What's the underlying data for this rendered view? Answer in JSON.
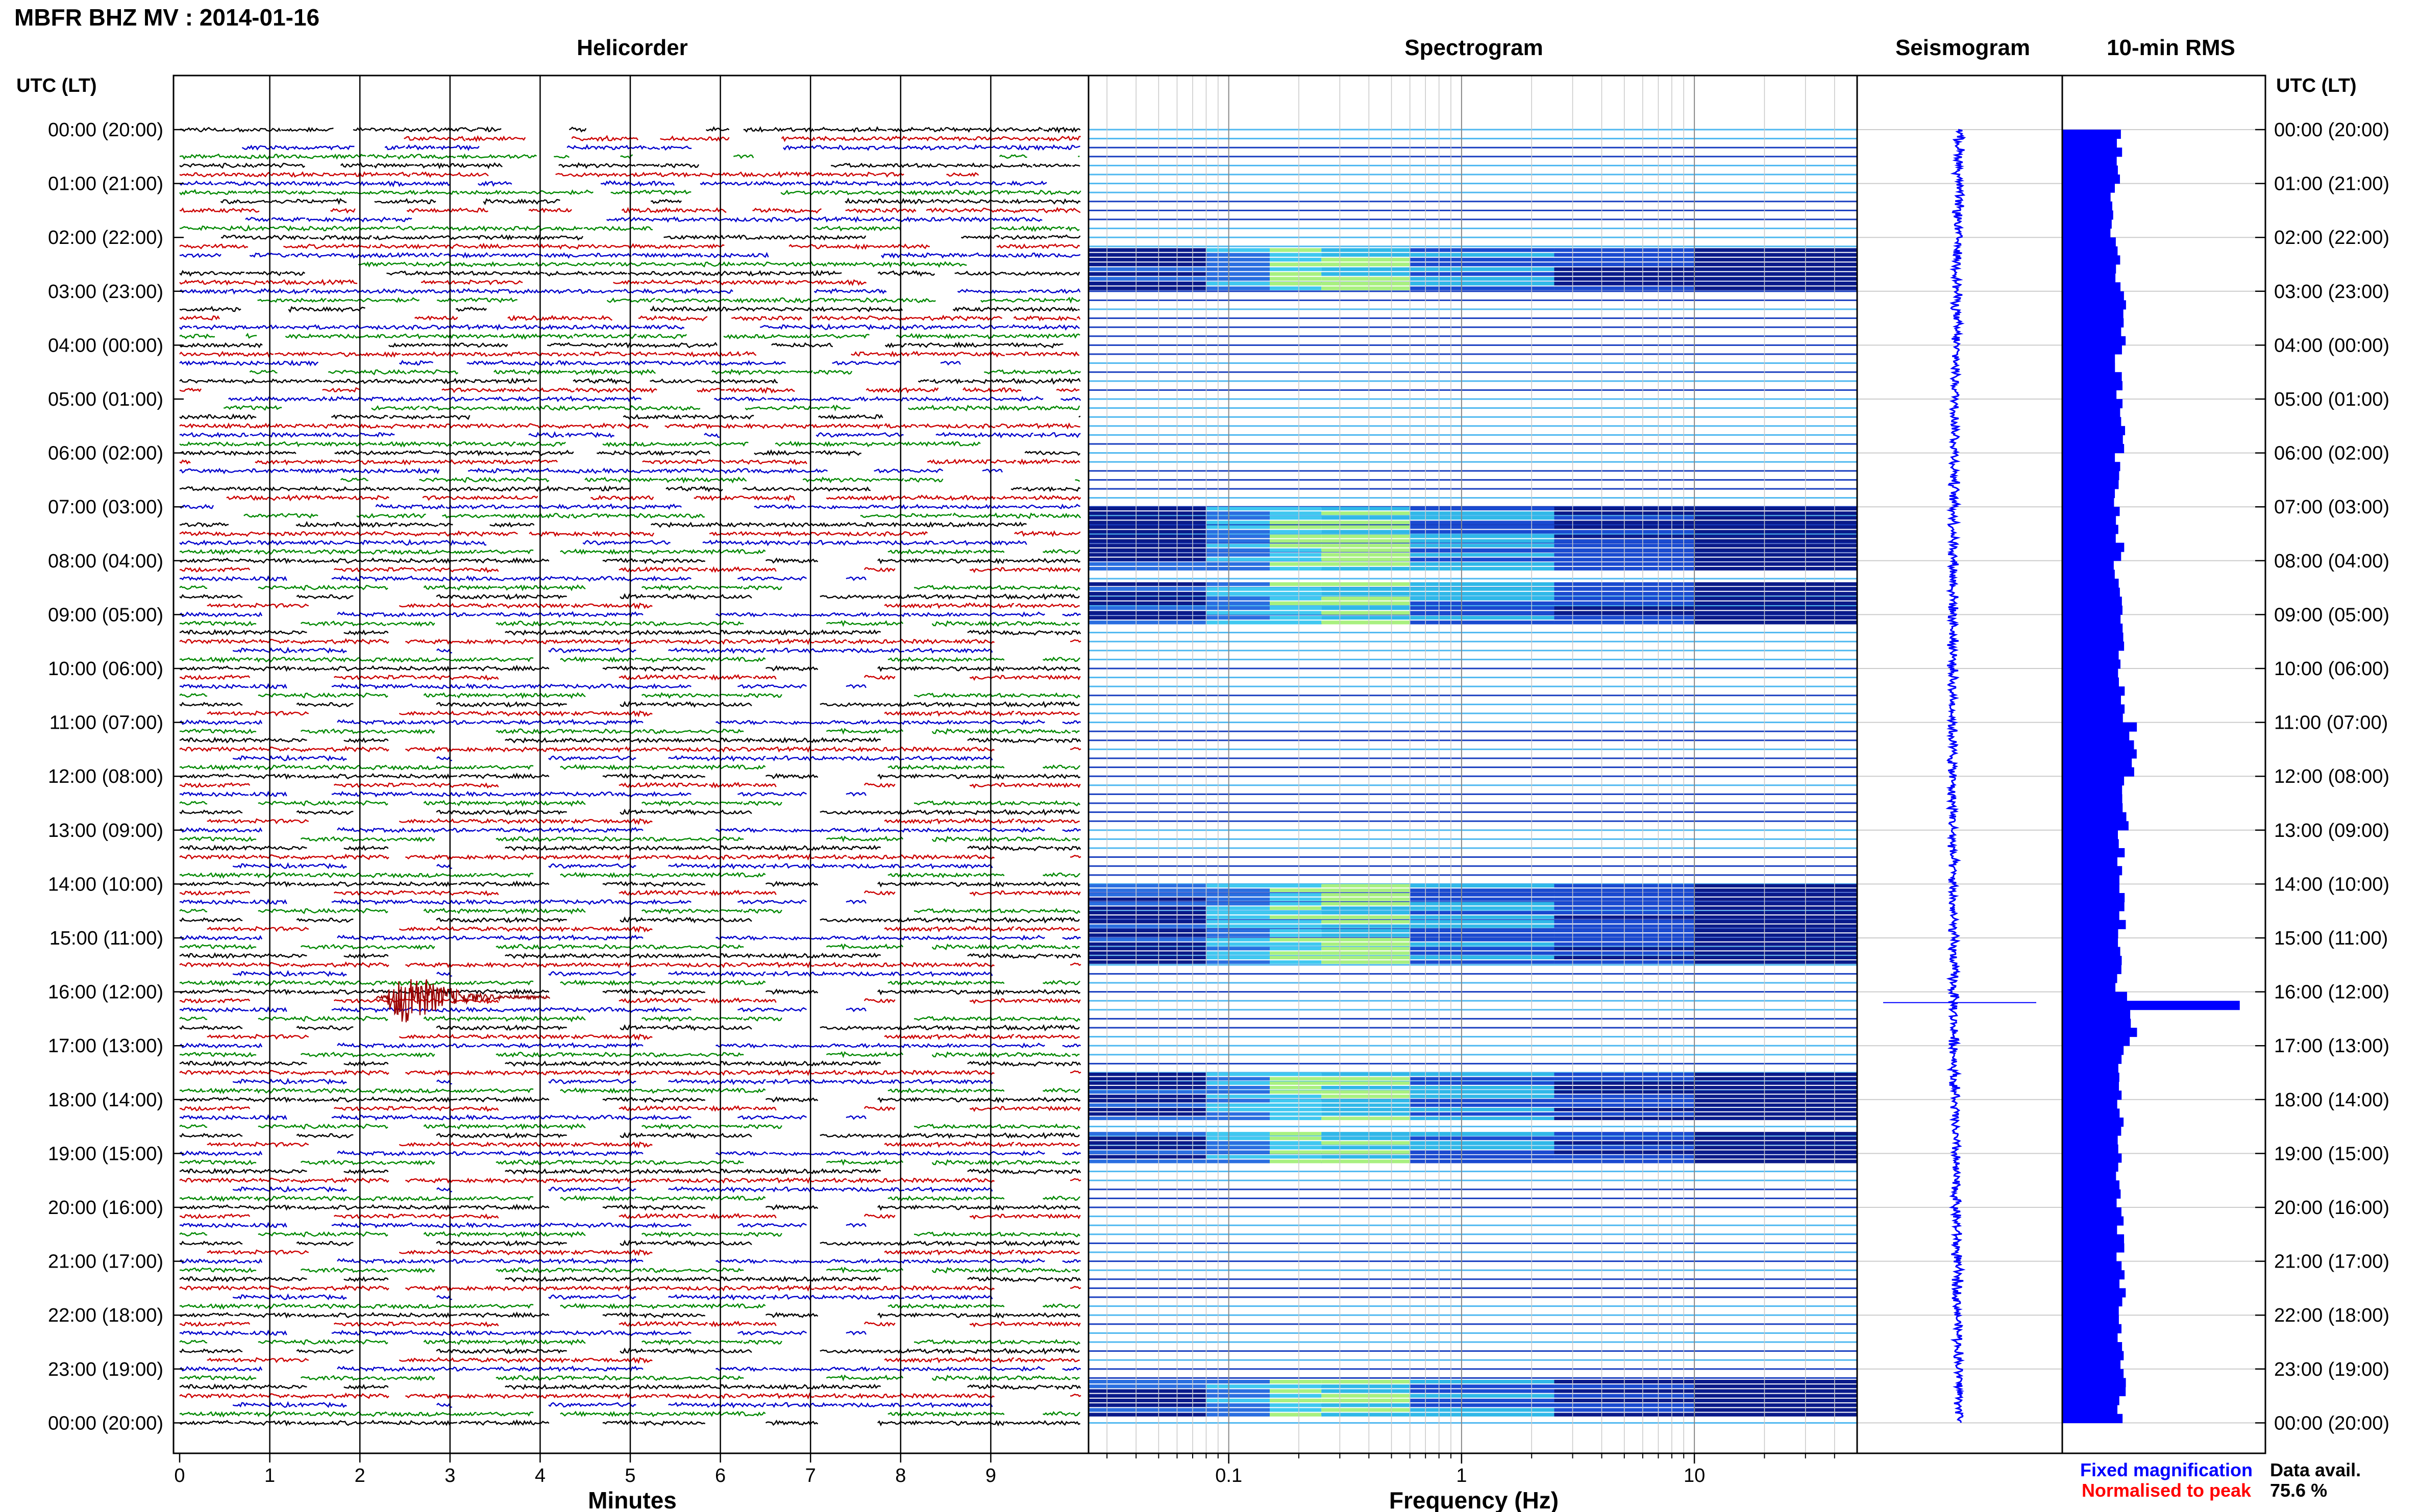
{
  "header": {
    "station_title": "MBFR BHZ MV : 2014-01-16",
    "panel_titles": {
      "helicorder": "Helicorder",
      "spectrogram": "Spectrogram",
      "seismogram": "Seismogram",
      "rms": "10-min RMS"
    },
    "time_axis_label_left": "UTC (LT)",
    "time_axis_label_right": "UTC (LT)"
  },
  "axes": {
    "minutes_label": "Minutes",
    "frequency_label": "Frequency (Hz)"
  },
  "legend": {
    "fixed_magnification": "Fixed magnification",
    "normalised_to_peak": "Normalised to peak",
    "fixed_color": "#0000ff",
    "normalised_color": "#ff0000"
  },
  "data_availability": {
    "label": "Data avail.",
    "value": "75.6 %"
  },
  "colors": {
    "trace_cycle": [
      "#000000",
      "#cc0000",
      "#0000cc",
      "#008800"
    ],
    "rms_bar": "#0000ff",
    "seismogram_trace": "#0000ff",
    "event_trace": "#990000"
  },
  "chart_data": [
    {
      "type": "line",
      "title": "Helicorder",
      "xlabel": "Minutes",
      "x_ticks": [
        "0",
        "1",
        "2",
        "3",
        "4",
        "5",
        "6",
        "7",
        "8",
        "9"
      ],
      "xlim": [
        0,
        10
      ],
      "y_tick_labels": [
        "00:00 (20:00)",
        "01:00 (21:00)",
        "02:00 (22:00)",
        "03:00 (23:00)",
        "04:00 (00:00)",
        "05:00 (01:00)",
        "06:00 (02:00)",
        "07:00 (03:00)",
        "08:00 (04:00)",
        "09:00 (05:00)",
        "10:00 (06:00)",
        "11:00 (07:00)",
        "12:00 (08:00)",
        "13:00 (09:00)",
        "14:00 (10:00)",
        "15:00 (11:00)",
        "16:00 (12:00)",
        "17:00 (13:00)",
        "18:00 (14:00)",
        "19:00 (15:00)",
        "20:00 (16:00)",
        "21:00 (17:00)",
        "22:00 (18:00)",
        "23:00 (19:00)",
        "00:00 (20:00)"
      ],
      "rows": 145,
      "event": {
        "hour": 16.1,
        "minute": 2.3
      }
    },
    {
      "type": "heatmap",
      "title": "Spectrogram",
      "xlabel": "Frequency (Hz)",
      "x_scale": "log",
      "xlim": [
        0.025,
        50
      ],
      "x_ticks": [
        "0.1",
        "1",
        "10"
      ],
      "active_bands": [
        [
          2.2,
          3.0
        ],
        [
          7.0,
          8.2
        ],
        [
          8.4,
          9.2
        ],
        [
          14.0,
          15.5
        ],
        [
          17.5,
          18.4
        ],
        [
          18.6,
          19.2
        ],
        [
          23.2,
          23.9
        ]
      ]
    },
    {
      "type": "line",
      "title": "Seismogram",
      "event_hour": 16.2
    },
    {
      "type": "bar",
      "title": "10-min RMS",
      "categories": [
        "00",
        "01",
        "02",
        "03",
        "04",
        "05",
        "06",
        "07",
        "08",
        "09",
        "10",
        "11",
        "12",
        "13",
        "14",
        "15",
        "16",
        "17",
        "18",
        "19",
        "20",
        "21",
        "22",
        "23"
      ],
      "values": [
        0.3,
        0.27,
        0.28,
        0.31,
        0.29,
        0.32,
        0.28,
        0.3,
        0.29,
        0.31,
        0.3,
        0.36,
        0.33,
        0.3,
        0.31,
        0.29,
        0.92,
        0.31,
        0.3,
        0.29,
        0.3,
        0.31,
        0.3,
        0.31
      ]
    }
  ]
}
